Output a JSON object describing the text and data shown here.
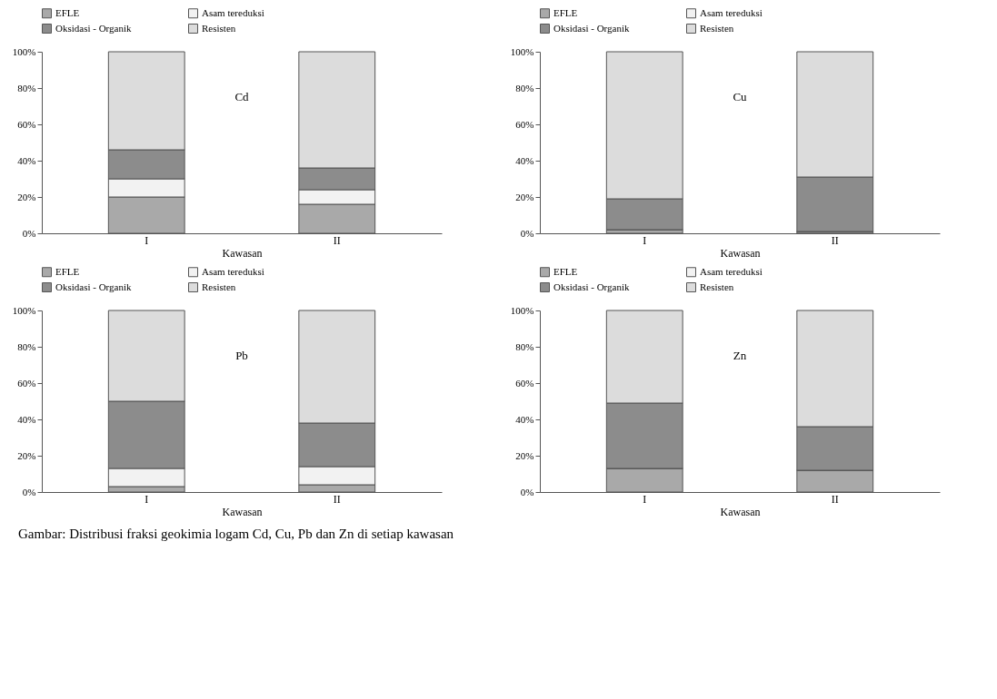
{
  "chart_data": [
    {
      "type": "bar",
      "stacked": true,
      "categories": [
        "I",
        "II"
      ],
      "xlabel": "Kawasan",
      "annotations": [
        "Cd"
      ],
      "legend": "top",
      "ylim": [
        0,
        100
      ],
      "yticks": [
        {
          "value": 0,
          "label": "0%"
        },
        {
          "value": 20,
          "label": "20%"
        },
        {
          "value": 40,
          "label": "40%"
        },
        {
          "value": 60,
          "label": "60%"
        },
        {
          "value": 80,
          "label": "80%"
        },
        {
          "value": 100,
          "label": "100%"
        }
      ],
      "series": [
        {
          "name": "EFLE",
          "color": "#a9a9a9",
          "values": [
            20,
            16
          ]
        },
        {
          "name": "Asam tereduksi",
          "color": "#f2f2f2",
          "values": [
            10,
            8
          ]
        },
        {
          "name": "Oksidasi - Organik",
          "color": "#8c8c8c",
          "values": [
            16,
            12
          ]
        },
        {
          "name": "Resisten",
          "color": "#dcdcdc",
          "values": [
            54,
            64
          ]
        }
      ]
    },
    {
      "type": "bar",
      "stacked": true,
      "categories": [
        "I",
        "II"
      ],
      "xlabel": "Kawasan",
      "annotations": [
        "Cu"
      ],
      "legend": "top",
      "ylim": [
        0,
        100
      ],
      "yticks": [
        {
          "value": 0,
          "label": "0%"
        },
        {
          "value": 20,
          "label": "20%"
        },
        {
          "value": 40,
          "label": "40%"
        },
        {
          "value": 60,
          "label": "60%"
        },
        {
          "value": 80,
          "label": "80%"
        },
        {
          "value": 100,
          "label": "100%"
        }
      ],
      "series": [
        {
          "name": "EFLE",
          "color": "#a9a9a9",
          "values": [
            2,
            1
          ]
        },
        {
          "name": "Asam tereduksi",
          "color": "#f2f2f2",
          "values": [
            0,
            0
          ]
        },
        {
          "name": "Oksidasi - Organik",
          "color": "#8c8c8c",
          "values": [
            17,
            30
          ]
        },
        {
          "name": "Resisten",
          "color": "#dcdcdc",
          "values": [
            81,
            69
          ]
        }
      ]
    },
    {
      "type": "bar",
      "stacked": true,
      "categories": [
        "I",
        "II"
      ],
      "xlabel": "Kawasan",
      "annotations": [
        "Pb"
      ],
      "legend": "top",
      "ylim": [
        0,
        100
      ],
      "yticks": [
        {
          "value": 0,
          "label": "0%"
        },
        {
          "value": 20,
          "label": "20%"
        },
        {
          "value": 40,
          "label": "40%"
        },
        {
          "value": 60,
          "label": "60%"
        },
        {
          "value": 80,
          "label": "80%"
        },
        {
          "value": 100,
          "label": "100%"
        }
      ],
      "series": [
        {
          "name": "EFLE",
          "color": "#a9a9a9",
          "values": [
            3,
            4
          ]
        },
        {
          "name": "Asam tereduksi",
          "color": "#f2f2f2",
          "values": [
            10,
            10
          ]
        },
        {
          "name": "Oksidasi - Organik",
          "color": "#8c8c8c",
          "values": [
            37,
            24
          ]
        },
        {
          "name": "Resisten",
          "color": "#dcdcdc",
          "values": [
            50,
            62
          ]
        }
      ]
    },
    {
      "type": "bar",
      "stacked": true,
      "categories": [
        "I",
        "II"
      ],
      "xlabel": "Kawasan",
      "annotations": [
        "Zn",
        "Gambar:    Distribusi fraksi geokimia logam Cd, Cu, Pb dan Zn di setiap kawasan"
      ],
      "legend": "top",
      "ylim": [
        0,
        100
      ],
      "yticks": [
        {
          "value": 0,
          "label": "0%"
        },
        {
          "value": 20,
          "label": "20%"
        },
        {
          "value": 40,
          "label": "40%"
        },
        {
          "value": 60,
          "label": "60%"
        },
        {
          "value": 80,
          "label": "80%"
        },
        {
          "value": 100,
          "label": "100%"
        }
      ],
      "series": [
        {
          "name": "EFLE",
          "color": "#a9a9a9",
          "values": [
            13,
            12
          ]
        },
        {
          "name": "Asam tereduksi",
          "color": "#f2f2f2",
          "values": [
            0,
            0
          ]
        },
        {
          "name": "Oksidasi - Organik",
          "color": "#8c8c8c",
          "values": [
            36,
            24
          ]
        },
        {
          "name": "Resisten",
          "color": "#dcdcdc",
          "values": [
            51,
            64
          ]
        }
      ]
    }
  ]
}
